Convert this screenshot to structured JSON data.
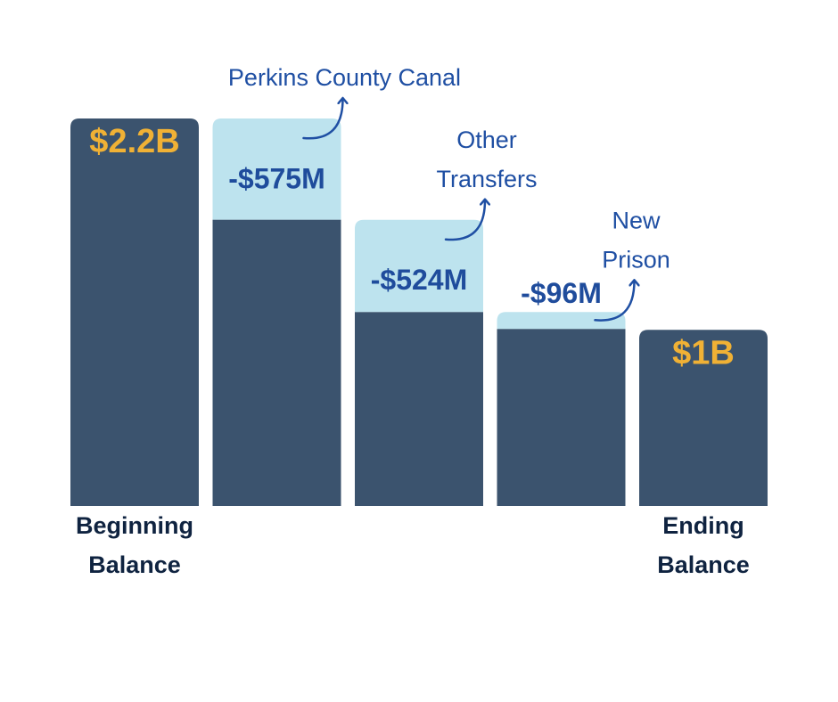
{
  "chart_data": {
    "type": "waterfall",
    "categories": [
      "Beginning Balance",
      null,
      null,
      null,
      "Ending Balance"
    ],
    "values": [
      2200,
      -575,
      -524,
      -96,
      1000
    ],
    "value_labels": [
      "$2.2B",
      "-$575M",
      "-$524M",
      "-$96M",
      "$1B"
    ],
    "kinds": [
      "total",
      "delta",
      "delta",
      "delta",
      "total"
    ],
    "annotations": [
      null,
      [
        "Perkins County Canal"
      ],
      [
        "Other",
        "Transfers"
      ],
      [
        "New",
        "Prison"
      ],
      null
    ],
    "colors": {
      "total": "#3b536e",
      "decrease": "#bde3ee",
      "total_label": "#f0b135",
      "delta_label": "#1f4c9c",
      "annotation": "#1f4fa3",
      "category": "#0f2340"
    },
    "ylim": [
      0,
      2200
    ]
  }
}
